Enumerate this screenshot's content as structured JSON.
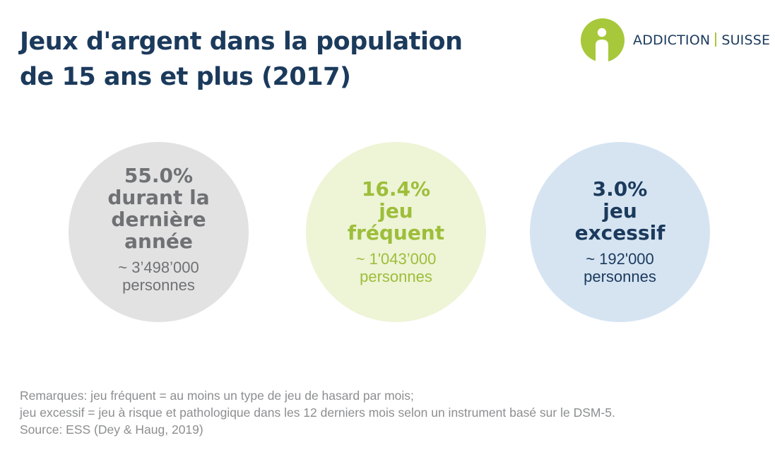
{
  "title": {
    "line1": "Jeux d'argent dans la population",
    "line2": "de 15 ans et plus (2017)"
  },
  "logo": {
    "word1": "ADDICTION",
    "word2": "SUISSE",
    "colors": {
      "green": "#a7c83a",
      "navy": "#1b3a5c"
    }
  },
  "stats": [
    {
      "lines": [
        "55.0%",
        "durant la",
        "dernière",
        "année"
      ],
      "count": "~ 3’498’000",
      "unit": "personnes",
      "color": "#707174",
      "background": "#e2e2e3"
    },
    {
      "lines": [
        "16.4%",
        "jeu",
        "fréquent"
      ],
      "count": "~ 1'043’000",
      "unit": "personnes",
      "color": "#9dbe3a",
      "background": "#eef4d6"
    },
    {
      "lines": [
        "3.0%",
        "jeu",
        "excessif"
      ],
      "count": "~ 192'000",
      "unit": "personnes",
      "color": "#1b3a5c",
      "background": "#d6e4f2"
    }
  ],
  "notes": {
    "line1": "Remarques: jeu fréquent = au moins un type de jeu de hasard par mois;",
    "line2": "jeu excessif = jeu à risque et pathologique dans les 12 derniers mois selon un instrument basé sur le DSM-5.",
    "line3": "Source: ESS (Dey & Haug, 2019)"
  }
}
